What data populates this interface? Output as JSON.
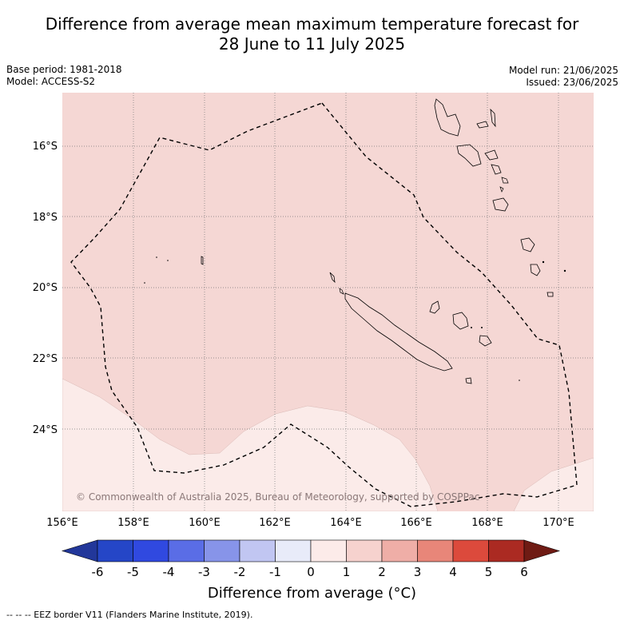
{
  "title_line1": "Difference from average mean maximum temperature forecast for",
  "title_line2": "28 June to 11 July 2025",
  "meta_left": {
    "base_period": "Base period: 1981-2018",
    "model": "Model: ACCESS-S2"
  },
  "meta_right": {
    "model_run": "Model run: 21/06/2025",
    "issued": "Issued: 23/06/2025"
  },
  "copyright": "© Commonwealth of Australia 2025, Bureau of Meteorology, supported by COSPPac",
  "lat_labels": [
    "16°S",
    "18°S",
    "20°S",
    "22°S",
    "24°S"
  ],
  "lon_labels": [
    "156°E",
    "158°E",
    "160°E",
    "162°E",
    "164°E",
    "166°E",
    "168°E",
    "170°E"
  ],
  "colorbar": {
    "title": "Difference from average (°C)",
    "ticks": [
      "-6",
      "-5",
      "-4",
      "-3",
      "-2",
      "-1",
      "0",
      "1",
      "2",
      "3",
      "4",
      "5",
      "6"
    ],
    "colors": [
      "#22379a",
      "#2546c7",
      "#3049e0",
      "#5a6de6",
      "#8794e9",
      "#c1c6f2",
      "#e8ebf9",
      "#fcebe9",
      "#f6d2ce",
      "#efaea7",
      "#e88679",
      "#dc4a3c",
      "#ab2a22",
      "#6f1b14"
    ]
  },
  "legend_footnote": "-- -- -- EEZ border V11 (Flanders Marine Institute, 2019).",
  "colors": {
    "anomaly_1_2": "#f5d7d4",
    "anomaly_0_1": "#fbebe9",
    "grid": "#777777"
  }
}
